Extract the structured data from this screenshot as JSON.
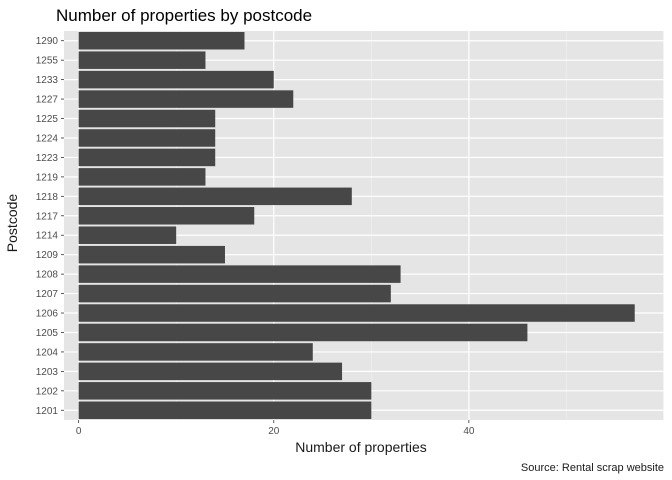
{
  "chart_data": {
    "type": "bar",
    "orientation": "horizontal",
    "title": "Number of properties by postcode",
    "xlabel": "Number of properties",
    "ylabel": "Postcode",
    "caption": "Source: Rental scrap website",
    "categories": [
      "1201",
      "1202",
      "1203",
      "1204",
      "1205",
      "1206",
      "1207",
      "1208",
      "1209",
      "1214",
      "1217",
      "1218",
      "1219",
      "1223",
      "1224",
      "1225",
      "1227",
      "1233",
      "1255",
      "1290"
    ],
    "values": [
      30,
      30,
      27,
      24,
      46,
      57,
      32,
      33,
      15,
      10,
      18,
      28,
      13,
      14,
      14,
      14,
      22,
      20,
      13,
      17
    ],
    "xlim": [
      -1.5,
      60
    ],
    "xticks": [
      0,
      20,
      40
    ],
    "grid": true,
    "colors": {
      "bar": "#474747",
      "panel": "#e5e5e5",
      "grid_major": "#ffffff",
      "grid_minor": "#f2f2f2"
    }
  }
}
